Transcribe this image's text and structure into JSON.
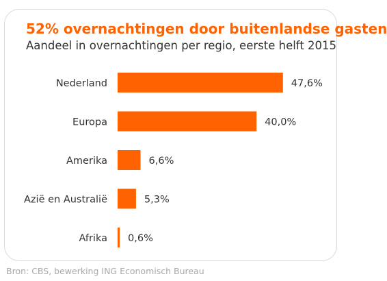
{
  "chart_data": {
    "type": "bar",
    "orientation": "horizontal",
    "title": "52% overnachtingen door buitenlandse gasten",
    "subtitle": "Aandeel in overnachtingen per regio, eerste helft 2015",
    "categories": [
      "Nederland",
      "Europa",
      "Amerika",
      "Azië en Australië",
      "Afrika"
    ],
    "values": [
      47.6,
      40.0,
      6.6,
      5.3,
      0.6
    ],
    "value_labels": [
      "47,6%",
      "40,0%",
      "6,6%",
      "5,3%",
      "0,6%"
    ],
    "unit": "%",
    "bar_color": "#ff6200",
    "grid": false,
    "legend": "none"
  },
  "source": "Bron: CBS, bewerking ING Economisch Bureau"
}
